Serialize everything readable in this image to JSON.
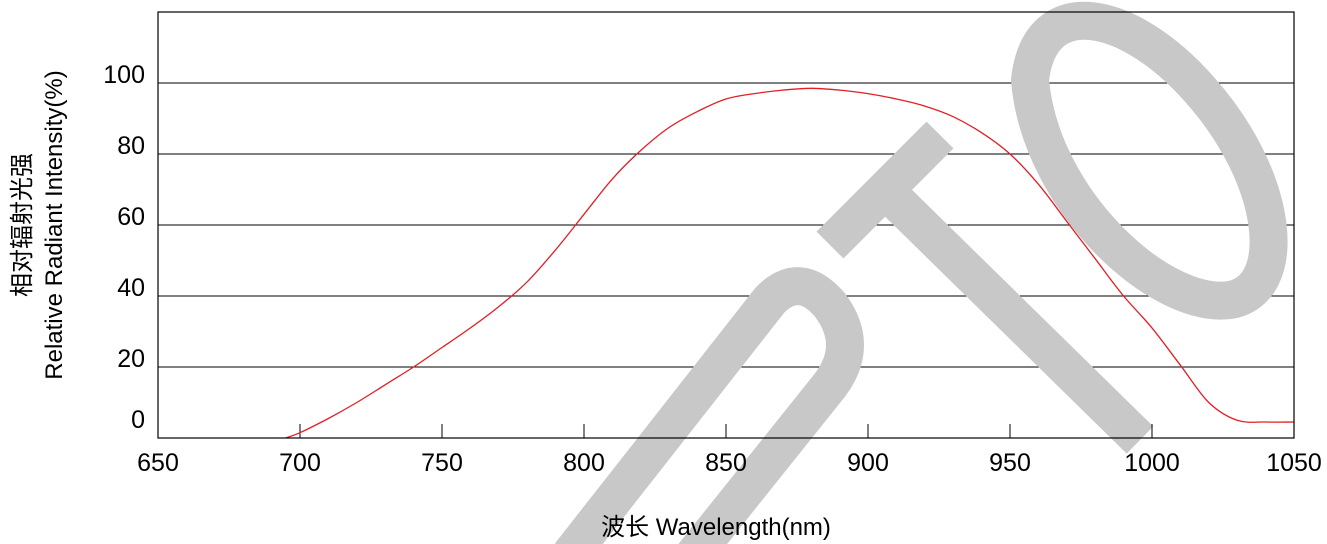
{
  "chart_data": {
    "type": "line",
    "title": "",
    "xlabel": "波长  Wavelength(nm)",
    "ylabel_line1": "相对辐射光强",
    "ylabel_line2": "Relative  Radiant Intensity(%)",
    "xlim": [
      650,
      1050
    ],
    "ylim": [
      0,
      120
    ],
    "x_ticks": [
      650,
      700,
      750,
      800,
      850,
      900,
      950,
      1000,
      1050
    ],
    "y_ticks": [
      0,
      20,
      40,
      60,
      80,
      100
    ],
    "grid": "horizontal",
    "line_color": "#e31e24",
    "watermark_color": "#c8c8c8",
    "series": [
      {
        "x": [
          695,
          700,
          710,
          720,
          730,
          740,
          750,
          760,
          770,
          780,
          790,
          800,
          810,
          820,
          830,
          840,
          850,
          860,
          870,
          880,
          890,
          900,
          910,
          920,
          930,
          940,
          950,
          960,
          970,
          980,
          990,
          1000,
          1010,
          1020,
          1030,
          1040,
          1050
        ],
        "y": [
          0,
          1.5,
          5.5,
          10,
          15,
          20,
          25.5,
          31,
          37,
          44,
          53,
          63,
          73,
          81,
          87.5,
          92,
          95.5,
          97,
          98,
          98.5,
          98,
          97,
          95.5,
          93.5,
          90.5,
          86,
          80,
          71.5,
          61,
          50.5,
          40,
          31,
          20.5,
          10,
          5,
          4.5,
          4.5
        ]
      }
    ]
  },
  "watermark": {
    "text": "OPTO"
  }
}
